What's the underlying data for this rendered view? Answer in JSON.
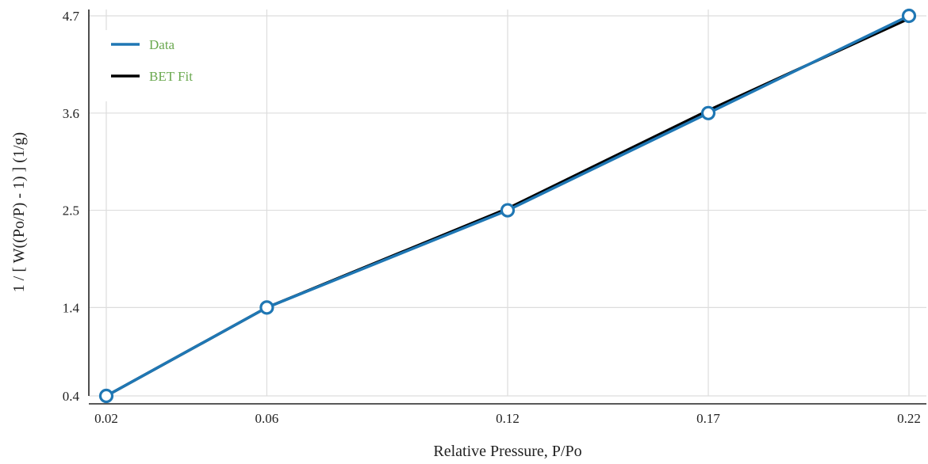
{
  "chart_data": {
    "type": "line",
    "title": "",
    "xlabel": "Relative Pressure, P/Po",
    "ylabel": "1 / [ W((Po/P) - 1) ] (1/g)",
    "x": [
      0.02,
      0.06,
      0.12,
      0.17,
      0.22
    ],
    "x_ticks": [
      "0.02",
      "0.06",
      "0.12",
      "0.17",
      "0.22"
    ],
    "y_ticks": [
      "0.4",
      "1.4",
      "2.5",
      "3.6",
      "4.7"
    ],
    "ylim": [
      0.4,
      4.7
    ],
    "grid": true,
    "legend_position": "top-left",
    "series": [
      {
        "name": "Data",
        "color": "#1f77b4",
        "marker": "circle",
        "values": [
          0.4,
          1.4,
          2.5,
          3.6,
          4.7
        ]
      },
      {
        "name": "BET Fit",
        "color": "#000000",
        "marker": "none",
        "values": [
          0.4,
          1.4,
          2.52,
          3.63,
          4.67
        ]
      }
    ],
    "legend_text_color": "#6aa84f",
    "grid_color": "#dddddd"
  }
}
